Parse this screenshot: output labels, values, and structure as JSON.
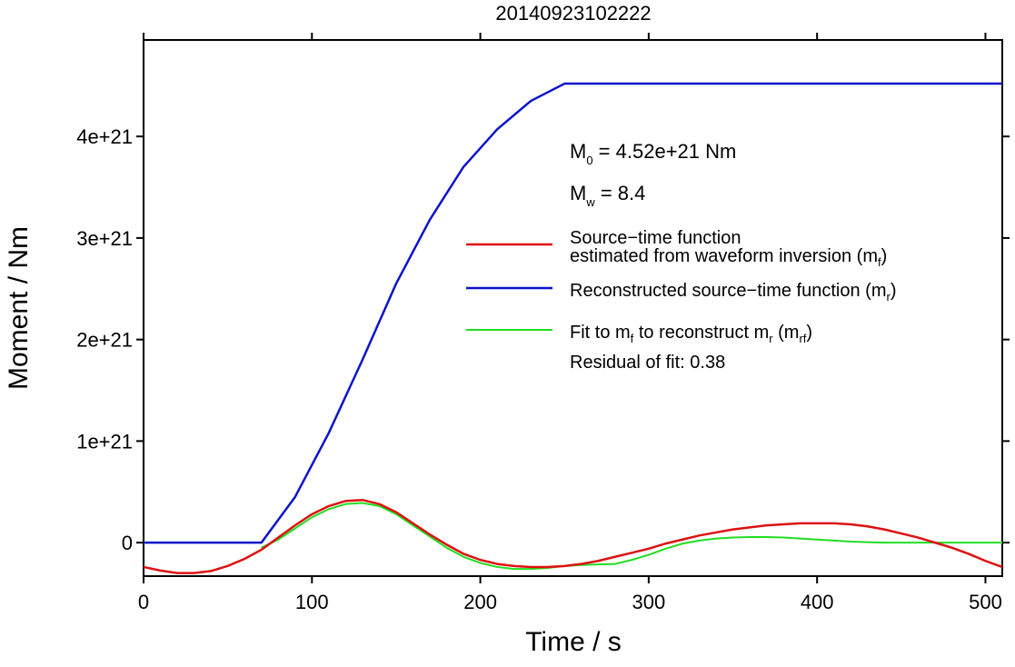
{
  "chart_data": {
    "type": "line",
    "title": "20140923102222",
    "xlabel": "Time / s",
    "ylabel": "Moment / Nm",
    "xlim": [
      0,
      510
    ],
    "ylim": [
      -3.3e+20,
      4.95e+21
    ],
    "x_ticks": [
      0,
      100,
      200,
      300,
      400,
      500
    ],
    "x_tick_labels": [
      "0",
      "100",
      "200",
      "300",
      "400",
      "500"
    ],
    "y_ticks": [
      0,
      1e+21,
      2e+21,
      3e+21,
      4e+21
    ],
    "y_tick_labels": [
      "0",
      "1e+21",
      "2e+21",
      "3e+21",
      "4e+21"
    ],
    "grid": false,
    "annotations": {
      "m0_base": "M",
      "m0_sub": "0",
      "m0_rest": " = 4.52e+21 Nm",
      "mw_base": "M",
      "mw_sub": "w",
      "mw_rest": " = 8.4",
      "residual": "Residual of fit: 0.38"
    },
    "legend": {
      "placement": "right",
      "entries": [
        {
          "color": "#dd1111",
          "line1": "Source−time function",
          "line2_main": "estimated from waveform inversion (m",
          "line2_sub": "f",
          "line2_end": ")"
        },
        {
          "color": "#0a14c8",
          "line1_main": "Reconstructed source−time function (m",
          "line1_sub": "r",
          "line1_end": ")"
        },
        {
          "color": "#22dd22",
          "p1": "Fit to m",
          "s1": "f",
          "p2": " to reconstruct m",
          "s2": "r",
          "p3": " (m",
          "s3": "rf",
          "p4": ")"
        }
      ]
    },
    "series": [
      {
        "key": "mf",
        "color": "#dd1111",
        "x": [
          0,
          10,
          20,
          30,
          40,
          50,
          60,
          70,
          80,
          90,
          100,
          110,
          120,
          130,
          140,
          150,
          160,
          170,
          180,
          190,
          200,
          210,
          220,
          230,
          240,
          250,
          260,
          270,
          280,
          290,
          300,
          310,
          320,
          330,
          340,
          350,
          360,
          370,
          380,
          390,
          400,
          410,
          420,
          430,
          440,
          450,
          460,
          470,
          480,
          490,
          500,
          510
        ],
        "y": [
          -2.4e+20,
          -2.75e+20,
          -3e+20,
          -3e+20,
          -2.8e+20,
          -2.3e+20,
          -1.6e+20,
          -7e+19,
          5e+19,
          1.7e+20,
          2.8e+20,
          3.6e+20,
          4.1e+20,
          4.2e+20,
          3.8e+20,
          3e+20,
          1.9e+20,
          8e+19,
          -2e+19,
          -1.1e+20,
          -1.7e+20,
          -2.1e+20,
          -2.3e+20,
          -2.4e+20,
          -2.4e+20,
          -2.3e+20,
          -2.1e+20,
          -1.8e+20,
          -1.4e+20,
          -1e+20,
          -6e+19,
          -1e+19,
          3e+19,
          7e+19,
          1e+20,
          1.3e+20,
          1.5e+20,
          1.7e+20,
          1.8e+20,
          1.9e+20,
          1.9e+20,
          1.9e+20,
          1.8e+20,
          1.6e+20,
          1.3e+20,
          9e+19,
          5e+19,
          0,
          -5e+19,
          -1.1e+20,
          -1.8e+20,
          -2.4e+20
        ]
      },
      {
        "key": "mr",
        "color": "#0a14c8",
        "x": [
          0,
          70,
          90,
          110,
          130,
          150,
          170,
          190,
          210,
          230,
          250,
          510
        ],
        "y": [
          0,
          0,
          4.5e+20,
          1.08e+21,
          1.8e+21,
          2.55e+21,
          3.18e+21,
          3.7e+21,
          4.07e+21,
          4.35e+21,
          4.52e+21,
          4.52e+21
        ]
      },
      {
        "key": "mrf",
        "color": "#22dd22",
        "x": [
          70,
          80,
          90,
          100,
          110,
          120,
          130,
          140,
          150,
          160,
          170,
          180,
          190,
          200,
          210,
          220,
          230,
          240,
          250,
          260,
          270,
          280,
          290,
          300,
          310,
          320,
          330,
          340,
          350,
          360,
          370,
          380,
          390,
          400,
          410,
          420,
          430,
          440,
          450,
          460,
          470,
          480,
          490,
          500,
          510
        ],
        "y": [
          -5e+19,
          3e+19,
          1.4e+20,
          2.5e+20,
          3.3e+20,
          3.8e+20,
          3.9e+20,
          3.6e+20,
          2.8e+20,
          1.7e+20,
          6e+19,
          -5e+19,
          -1.4e+20,
          -2e+20,
          -2.4e+20,
          -2.6e+20,
          -2.6e+20,
          -2.5e+20,
          -2.3e+20,
          -2.2e+20,
          -2.15e+20,
          -2.1e+20,
          -1.7e+20,
          -1.2e+20,
          -6e+19,
          -1e+19,
          2e+19,
          4e+19,
          5e+19,
          5.5e+19,
          5.5e+19,
          5e+19,
          4e+19,
          3e+19,
          2e+19,
          1e+19,
          5e+18,
          0,
          0,
          0,
          0,
          0,
          0,
          0,
          0
        ]
      }
    ]
  }
}
